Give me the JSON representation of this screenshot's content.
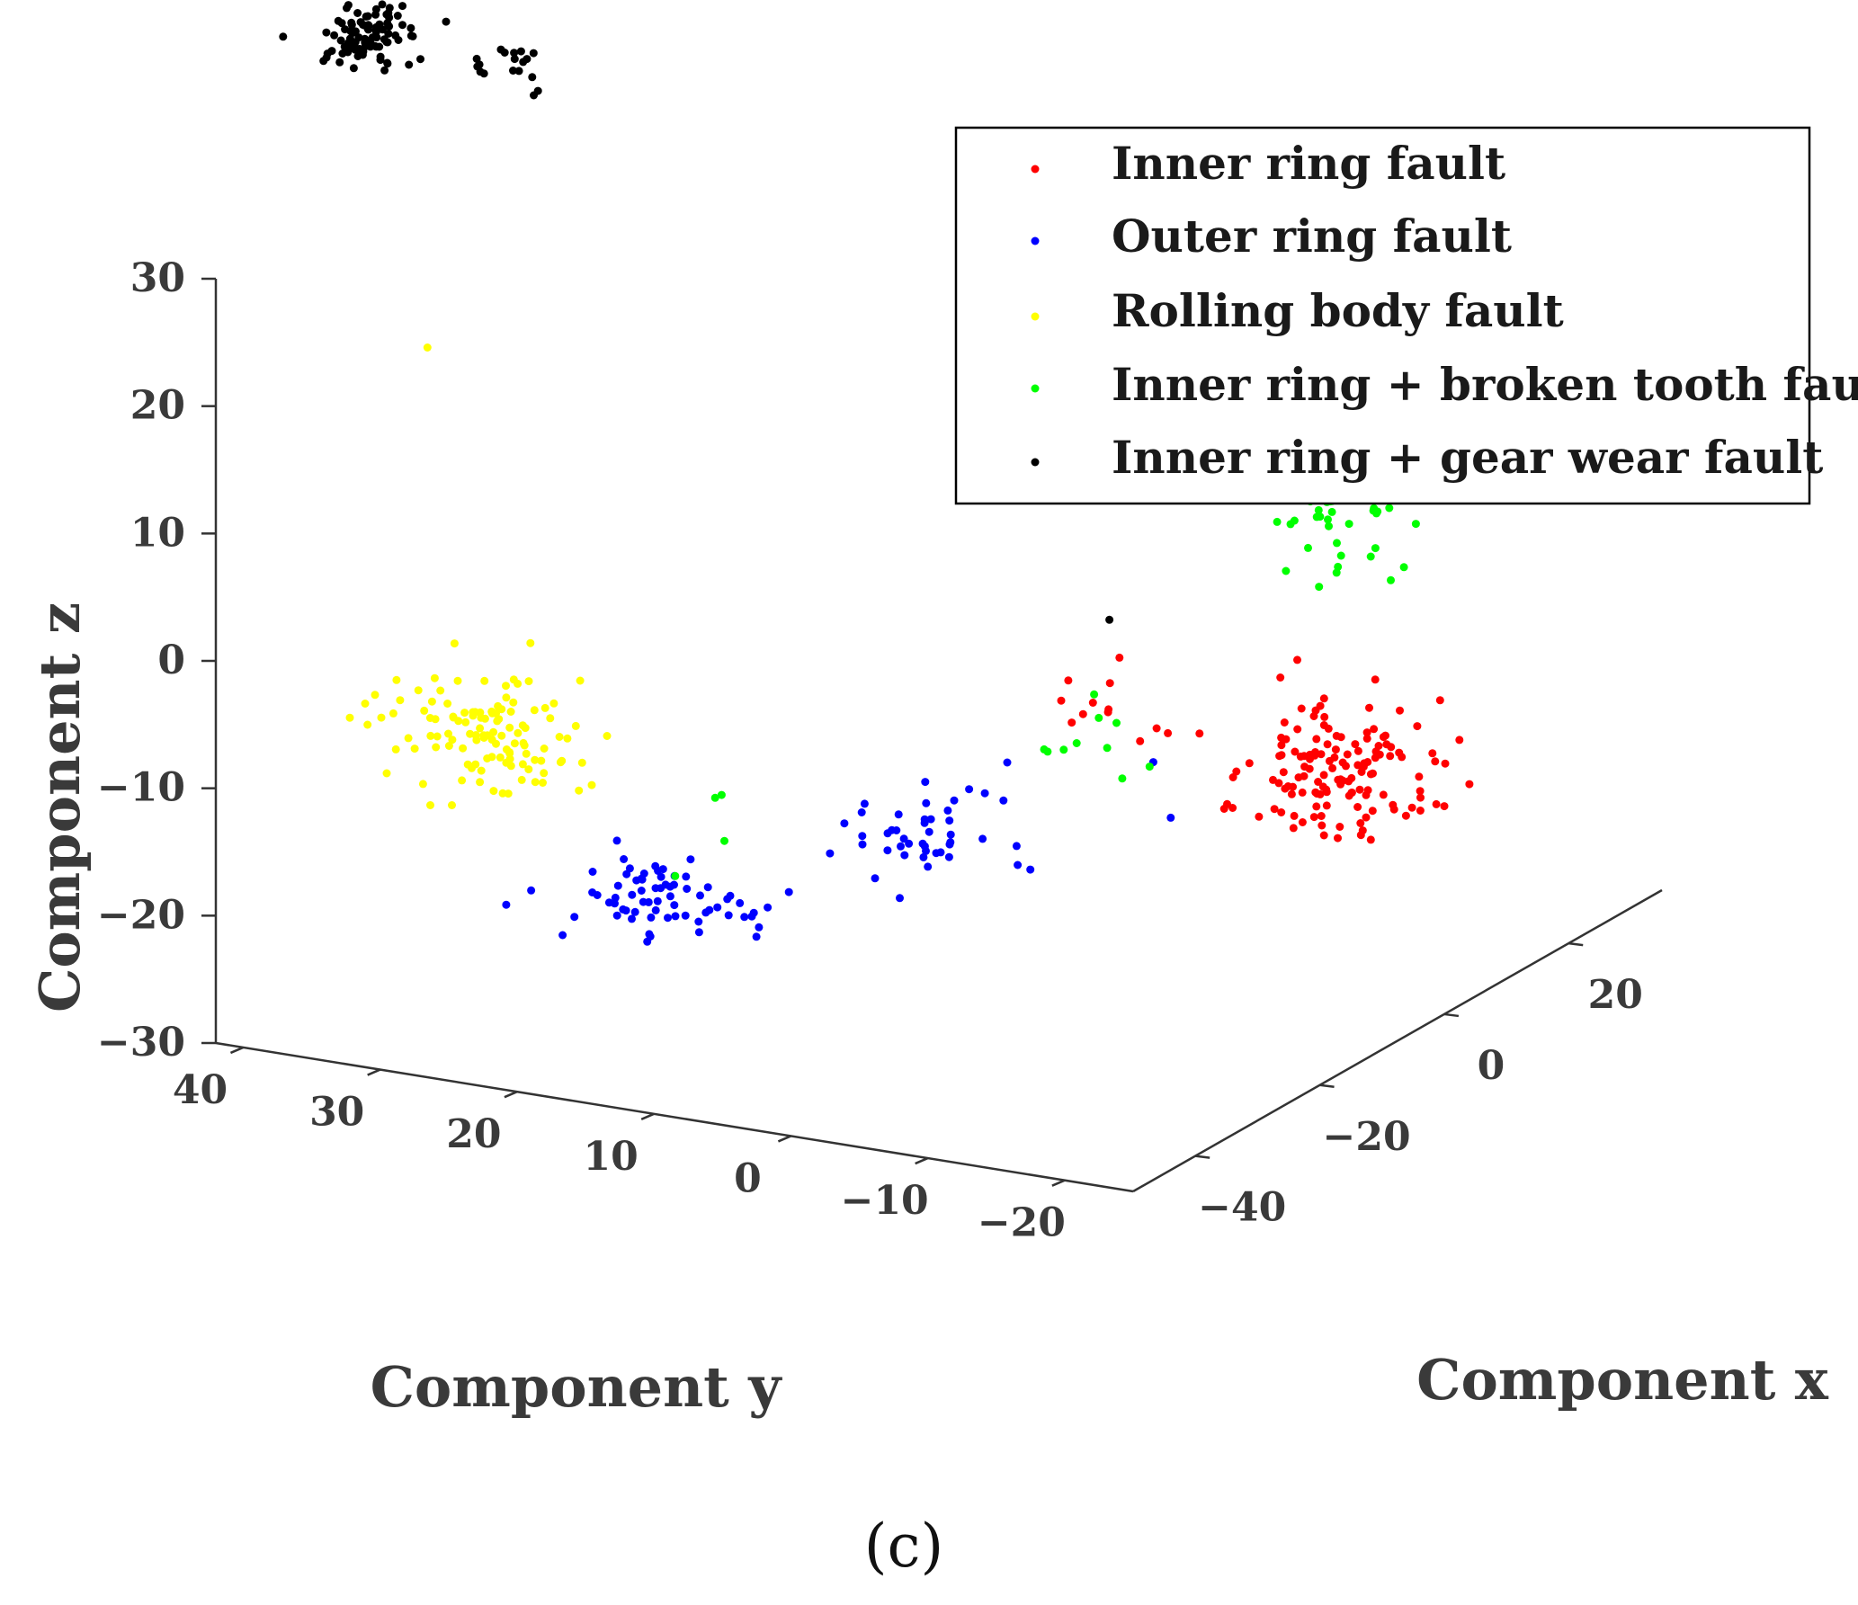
{
  "chart_data": {
    "type": "scatter3d",
    "panel_label": "(c)",
    "xlabel": "Component x",
    "ylabel": "Component y",
    "zlabel": "Component z",
    "xlim": [
      -50,
      35
    ],
    "ylim": [
      -25,
      42
    ],
    "zlim": [
      -30,
      30
    ],
    "x_ticks": [
      -40,
      -20,
      0,
      20
    ],
    "y_ticks": [
      40,
      30,
      20,
      10,
      0,
      -10,
      -20
    ],
    "z_ticks": [
      30,
      20,
      10,
      0,
      -10,
      -20,
      -30
    ],
    "tick_labels": {
      "x": [
        "−40",
        "−20",
        "0",
        "20"
      ],
      "y": [
        "40",
        "30",
        "20",
        "10",
        "0",
        "−10",
        "−20"
      ],
      "z": [
        "30",
        "20",
        "10",
        "0",
        "−10",
        "−20",
        "−30"
      ]
    },
    "grid": false,
    "legend_position": "top-right",
    "series": [
      {
        "name": "Inner ring fault",
        "color": "#ff0000",
        "clusters": [
          {
            "center": [
              5,
              -15,
              -14
            ],
            "spread": [
              7,
              4,
              4
            ],
            "count": 140
          },
          {
            "center": [
              -22,
              -11,
              -2
            ],
            "spread": [
              3,
              3,
              3
            ],
            "count": 12
          }
        ]
      },
      {
        "name": "Outer ring fault",
        "color": "#0000ff",
        "clusters": [
          {
            "center": [
              -45,
              12,
              -15
            ],
            "spread": [
              4,
              5,
              2
            ],
            "count": 70
          },
          {
            "center": [
              -30,
              0,
              -12
            ],
            "spread": [
              4,
              4,
              2.5
            ],
            "count": 45
          },
          {
            "center": [
              -8,
              -10,
              -14
            ],
            "spread": [
              2,
              2,
              2
            ],
            "count": 2
          }
        ]
      },
      {
        "name": "Rolling body fault",
        "color": "#ffff00",
        "clusters": [
          {
            "center": [
              -40,
              27,
              -6
            ],
            "spread": [
              4,
              5,
              3
            ],
            "count": 120
          },
          {
            "center": [
              -38,
              32,
              23
            ],
            "spread": [
              0,
              0,
              0
            ],
            "count": 1
          }
        ]
      },
      {
        "name": "Inner ring + broken tooth fault",
        "color": "#00ff00",
        "clusters": [
          {
            "center": [
              15,
              -10,
              5
            ],
            "spread": [
              6,
              4,
              4
            ],
            "count": 120
          },
          {
            "center": [
              -20,
              -8,
              -6
            ],
            "spread": [
              3,
              3,
              3
            ],
            "count": 10
          },
          {
            "center": [
              -38,
              10,
              -10
            ],
            "spread": [
              3,
              3,
              3
            ],
            "count": 4
          }
        ]
      },
      {
        "name": "Inner ring + gear wear fault",
        "color": "#000000",
        "clusters": [
          {
            "center": [
              -30,
              40,
              44
            ],
            "spread": [
              3,
              2,
              2
            ],
            "count": 95
          },
          {
            "center": [
              -20,
              34,
              40
            ],
            "spread": [
              2,
              2,
              1.5
            ],
            "count": 18
          },
          {
            "center": [
              -12,
              -6,
              1
            ],
            "spread": [
              0,
              0,
              0
            ],
            "count": 1
          }
        ]
      }
    ]
  }
}
